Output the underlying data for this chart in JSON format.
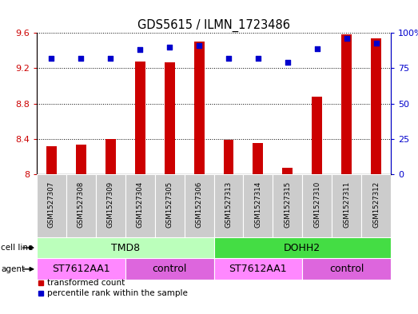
{
  "title": "GDS5615 / ILMN_1723486",
  "samples": [
    "GSM1527307",
    "GSM1527308",
    "GSM1527309",
    "GSM1527304",
    "GSM1527305",
    "GSM1527306",
    "GSM1527313",
    "GSM1527314",
    "GSM1527315",
    "GSM1527310",
    "GSM1527311",
    "GSM1527312"
  ],
  "bar_values": [
    8.32,
    8.34,
    8.4,
    9.28,
    9.27,
    9.5,
    8.39,
    8.35,
    8.07,
    8.88,
    9.58,
    9.54
  ],
  "dot_values": [
    82,
    82,
    82,
    88,
    90,
    91,
    82,
    82,
    79,
    89,
    96,
    93
  ],
  "ymin": 8.0,
  "ymax": 9.6,
  "yticks": [
    8.0,
    8.4,
    8.8,
    9.2,
    9.6
  ],
  "ytick_labels": [
    "8",
    "8.4",
    "8.8",
    "9.2",
    "9.6"
  ],
  "y2ticks": [
    0,
    25,
    50,
    75,
    100
  ],
  "y2tick_labels": [
    "0",
    "25",
    "50",
    "75",
    "100%"
  ],
  "bar_color": "#cc0000",
  "dot_color": "#0000cc",
  "cell_lines": [
    {
      "label": "TMD8",
      "start": 0,
      "end": 6,
      "color": "#bbffbb"
    },
    {
      "label": "DOHH2",
      "start": 6,
      "end": 12,
      "color": "#44dd44"
    }
  ],
  "agents": [
    {
      "label": "ST7612AA1",
      "start": 0,
      "end": 3,
      "color": "#ff88ff"
    },
    {
      "label": "control",
      "start": 3,
      "end": 6,
      "color": "#dd66dd"
    },
    {
      "label": "ST7612AA1",
      "start": 6,
      "end": 9,
      "color": "#ff88ff"
    },
    {
      "label": "control",
      "start": 9,
      "end": 12,
      "color": "#dd66dd"
    }
  ],
  "cell_line_label": "cell line",
  "agent_label": "agent",
  "legend_transformed": "transformed count",
  "legend_percentile": "percentile rank within the sample",
  "sample_box_color": "#cccccc",
  "bar_width": 0.35
}
